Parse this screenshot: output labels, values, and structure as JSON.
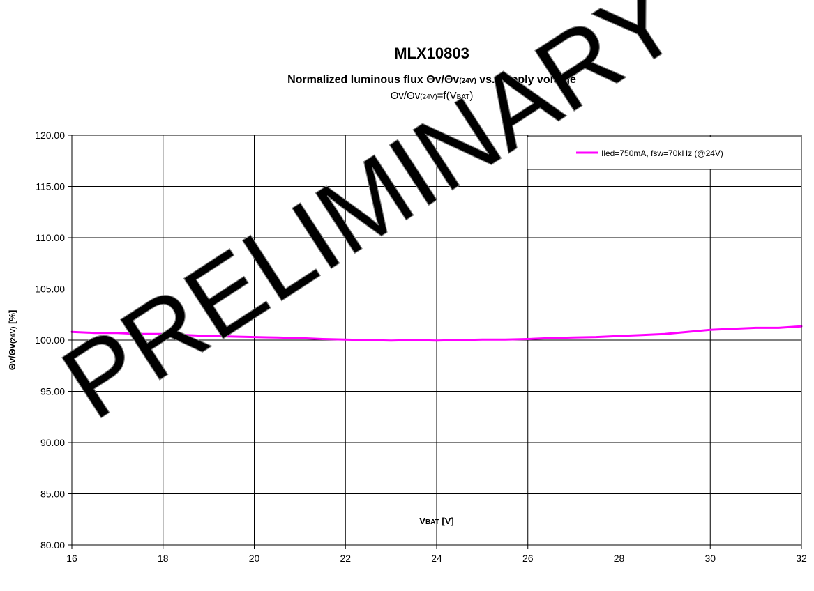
{
  "chart_data": {
    "type": "line",
    "title": "MLX10803",
    "subtitle": {
      "main": "Normalized luminous flux Θv/Θv",
      "sub": "(24V)",
      "tail": " vs. supply voltage"
    },
    "formula": {
      "a": "Θv/Θv",
      "a_sub": "(24V)",
      "b": "=f(V",
      "b_sub": "BAT",
      "c": ")"
    },
    "xlabel": {
      "main": "V",
      "sub": "BAT",
      "tail": " [V]"
    },
    "ylabel": {
      "main": "Θv/Θv",
      "sub": "(24V)",
      "tail": " [%]"
    },
    "xlim": [
      16,
      32
    ],
    "ylim": [
      80,
      120
    ],
    "x_ticks": [
      "16",
      "18",
      "20",
      "22",
      "24",
      "26",
      "28",
      "30",
      "32"
    ],
    "y_ticks": [
      "80.00",
      "85.00",
      "90.00",
      "95.00",
      "100.00",
      "105.00",
      "110.00",
      "115.00",
      "120.00"
    ],
    "grid": true,
    "legend_position": "top-right",
    "watermark": "PRELIMINARY",
    "colors": {
      "series": "#ff00ff",
      "grid": "#000000",
      "watermark": "#808080"
    },
    "series": [
      {
        "name": "Iled=750mA, fsw=70kHz (@24V)",
        "x": [
          16,
          16.5,
          17,
          17.5,
          18,
          18.5,
          19,
          19.5,
          20,
          20.5,
          21,
          21.5,
          22,
          22.5,
          23,
          23.5,
          24,
          24.5,
          25,
          25.5,
          26,
          26.5,
          27,
          27.5,
          28,
          28.5,
          29,
          29.5,
          30,
          30.5,
          31,
          31.5,
          32
        ],
        "y": [
          100.8,
          100.7,
          100.7,
          100.6,
          100.6,
          100.5,
          100.4,
          100.35,
          100.3,
          100.25,
          100.2,
          100.1,
          100.05,
          100.0,
          99.95,
          100.0,
          99.95,
          100.0,
          100.05,
          100.05,
          100.1,
          100.2,
          100.25,
          100.3,
          100.4,
          100.5,
          100.6,
          100.8,
          101.0,
          101.1,
          101.2,
          101.2,
          101.35
        ]
      }
    ]
  }
}
